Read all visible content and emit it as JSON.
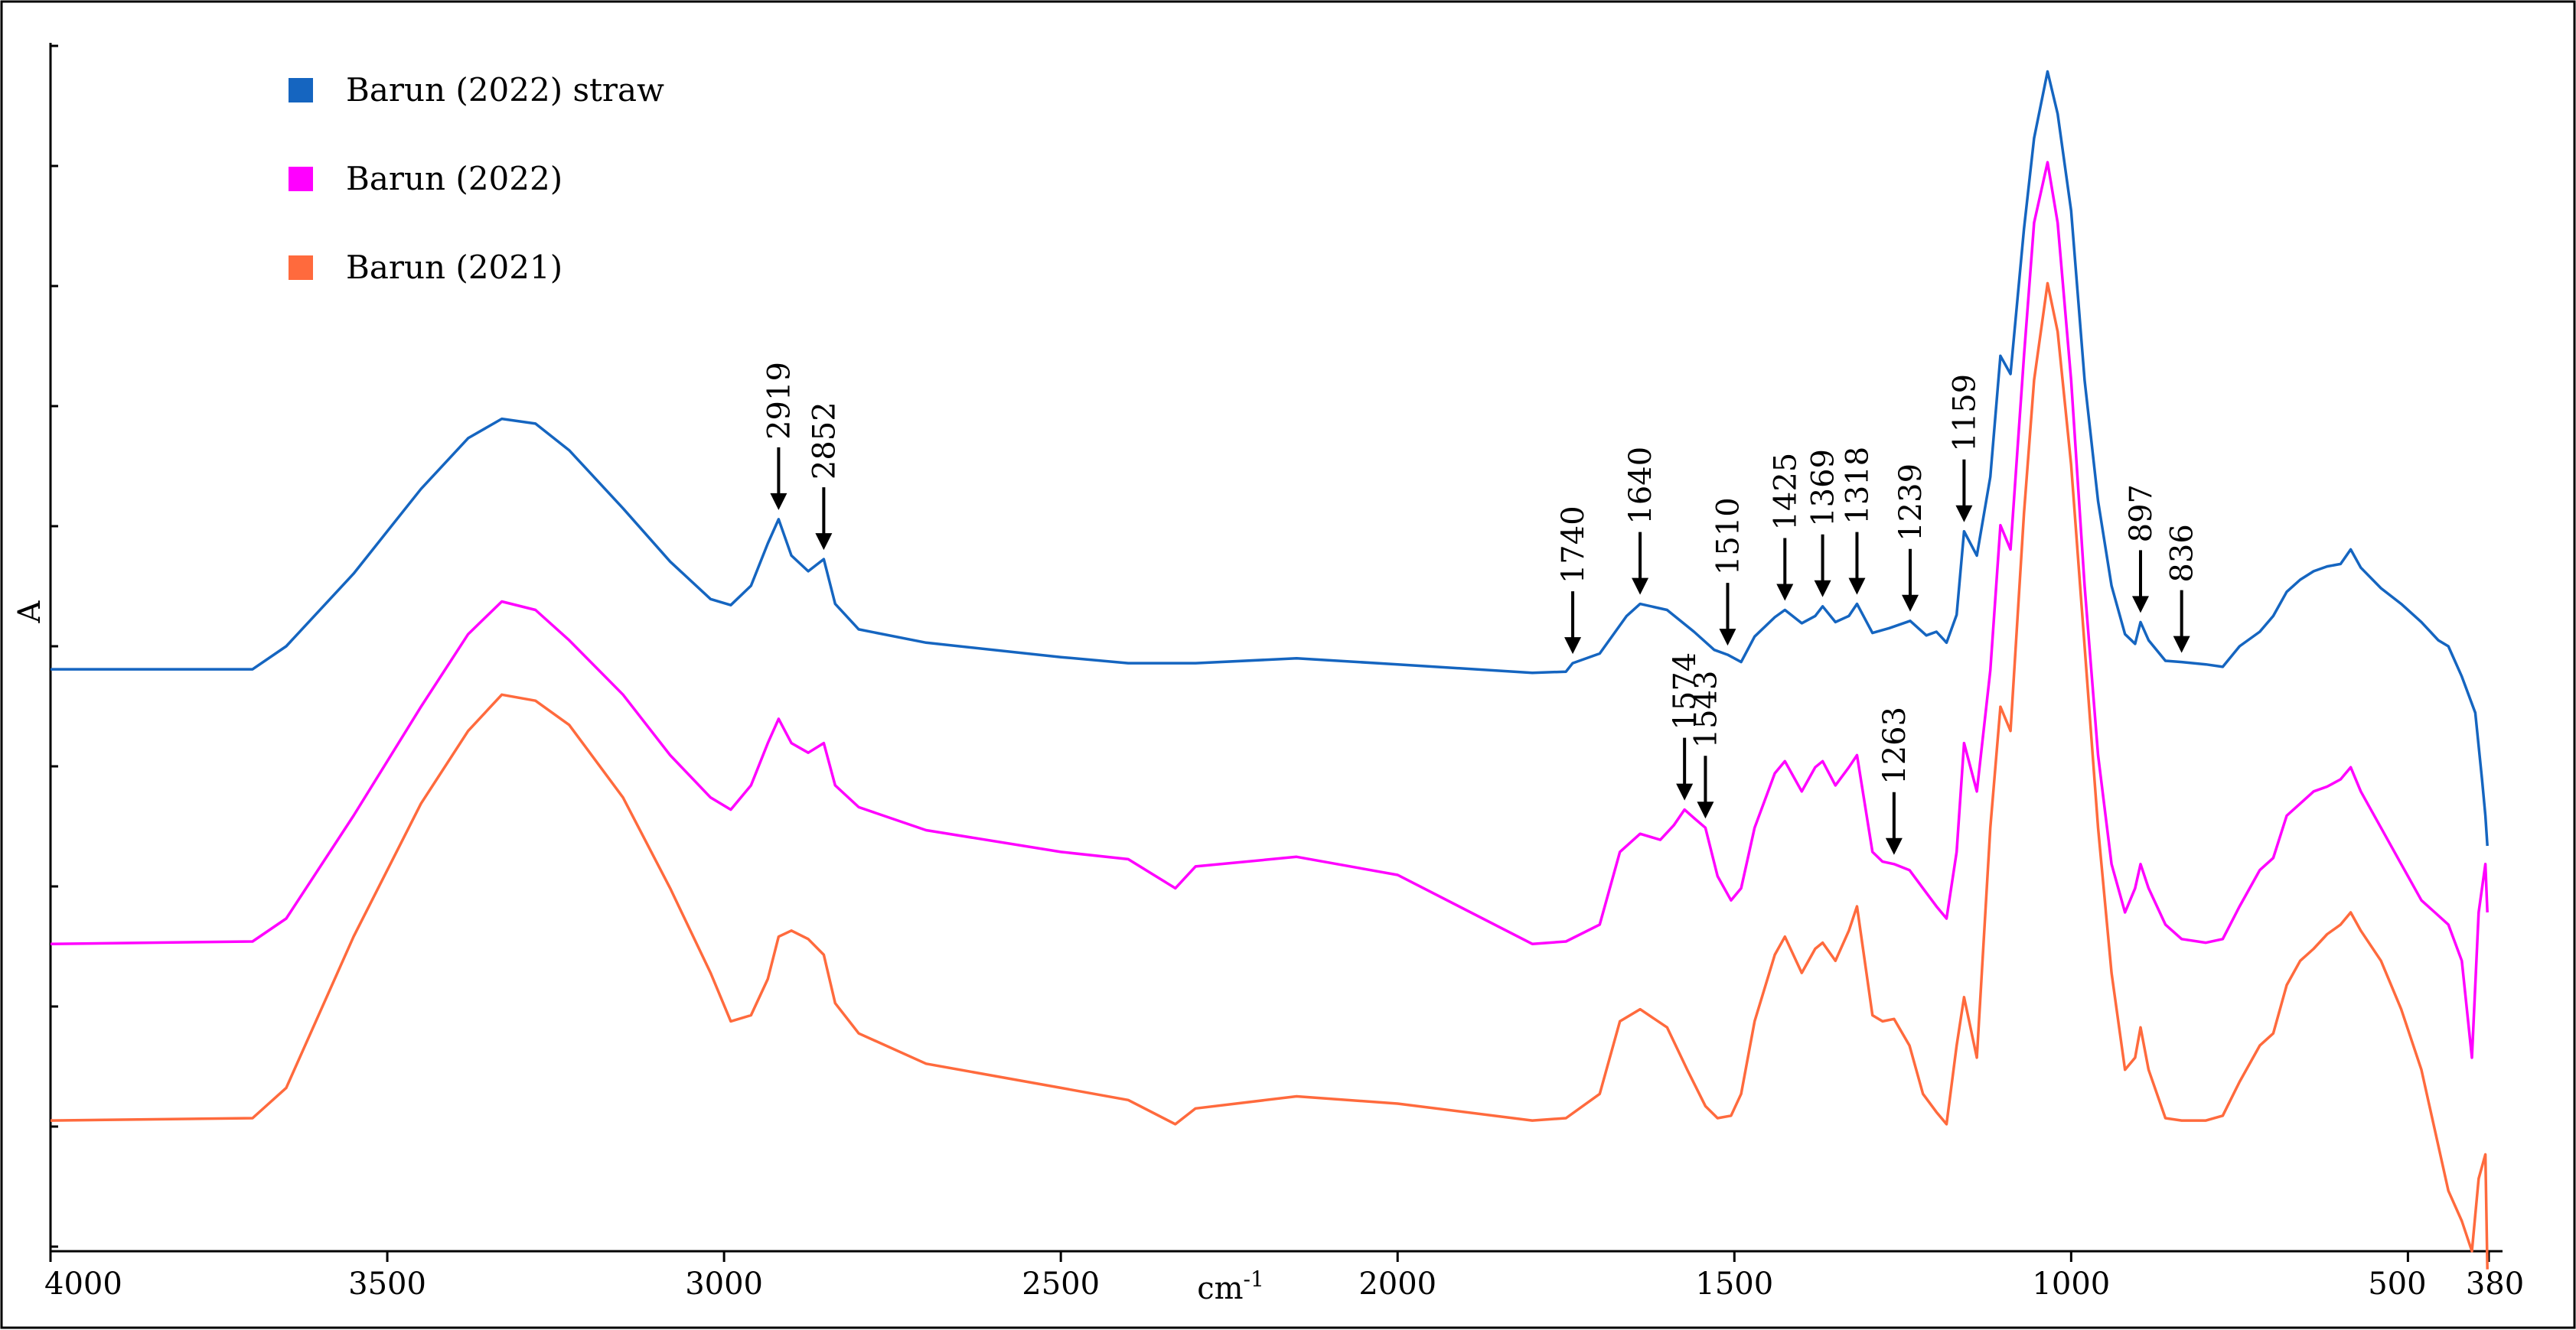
{
  "chart_data": {
    "type": "line",
    "title": "",
    "xlabel": "cm-1",
    "xlabel_text": "cm",
    "xlabel_sup": "-1",
    "ylabel": "A",
    "xlim": [
      4000,
      380
    ],
    "x_reversed": true,
    "ylim": [
      0,
      1
    ],
    "grid": false,
    "legend_position": "top-left",
    "x_ticks": [
      4000,
      3500,
      3000,
      2500,
      2000,
      1500,
      1000,
      500,
      380
    ],
    "x_tick_labels": [
      "4000",
      "3500",
      "3000",
      "2500",
      "2000",
      "1500",
      "1000",
      "500",
      "380"
    ],
    "series": [
      {
        "name": "Barun (2022) straw",
        "color": "#1565C0",
        "points": [
          [
            4000,
            0.481
          ],
          [
            3700,
            0.481
          ],
          [
            3650,
            0.5
          ],
          [
            3550,
            0.56
          ],
          [
            3450,
            0.63
          ],
          [
            3380,
            0.672
          ],
          [
            3330,
            0.688
          ],
          [
            3280,
            0.684
          ],
          [
            3230,
            0.662
          ],
          [
            3150,
            0.614
          ],
          [
            3080,
            0.57
          ],
          [
            3020,
            0.539
          ],
          [
            2990,
            0.534
          ],
          [
            2960,
            0.55
          ],
          [
            2935,
            0.585
          ],
          [
            2919,
            0.605
          ],
          [
            2900,
            0.575
          ],
          [
            2875,
            0.562
          ],
          [
            2852,
            0.572
          ],
          [
            2835,
            0.535
          ],
          [
            2800,
            0.514
          ],
          [
            2700,
            0.503
          ],
          [
            2500,
            0.491
          ],
          [
            2400,
            0.486
          ],
          [
            2300,
            0.486
          ],
          [
            2150,
            0.49
          ],
          [
            2000,
            0.485
          ],
          [
            1800,
            0.478
          ],
          [
            1750,
            0.479
          ],
          [
            1740,
            0.486
          ],
          [
            1700,
            0.494
          ],
          [
            1660,
            0.525
          ],
          [
            1640,
            0.535
          ],
          [
            1600,
            0.53
          ],
          [
            1560,
            0.512
          ],
          [
            1530,
            0.497
          ],
          [
            1510,
            0.493
          ],
          [
            1490,
            0.487
          ],
          [
            1470,
            0.508
          ],
          [
            1440,
            0.524
          ],
          [
            1425,
            0.53
          ],
          [
            1400,
            0.519
          ],
          [
            1380,
            0.525
          ],
          [
            1369,
            0.533
          ],
          [
            1350,
            0.52
          ],
          [
            1330,
            0.525
          ],
          [
            1318,
            0.535
          ],
          [
            1295,
            0.511
          ],
          [
            1270,
            0.515
          ],
          [
            1239,
            0.521
          ],
          [
            1215,
            0.509
          ],
          [
            1200,
            0.512
          ],
          [
            1185,
            0.503
          ],
          [
            1170,
            0.526
          ],
          [
            1159,
            0.595
          ],
          [
            1140,
            0.575
          ],
          [
            1120,
            0.64
          ],
          [
            1105,
            0.74
          ],
          [
            1090,
            0.725
          ],
          [
            1070,
            0.845
          ],
          [
            1055,
            0.92
          ],
          [
            1035,
            0.975
          ],
          [
            1020,
            0.94
          ],
          [
            1000,
            0.86
          ],
          [
            980,
            0.72
          ],
          [
            960,
            0.62
          ],
          [
            940,
            0.55
          ],
          [
            920,
            0.51
          ],
          [
            905,
            0.502
          ],
          [
            897,
            0.52
          ],
          [
            885,
            0.505
          ],
          [
            860,
            0.488
          ],
          [
            836,
            0.487
          ],
          [
            800,
            0.485
          ],
          [
            775,
            0.483
          ],
          [
            750,
            0.5
          ],
          [
            720,
            0.512
          ],
          [
            700,
            0.525
          ],
          [
            680,
            0.545
          ],
          [
            660,
            0.555
          ],
          [
            640,
            0.562
          ],
          [
            620,
            0.566
          ],
          [
            600,
            0.568
          ],
          [
            585,
            0.58
          ],
          [
            570,
            0.565
          ],
          [
            540,
            0.548
          ],
          [
            510,
            0.535
          ],
          [
            480,
            0.52
          ],
          [
            455,
            0.505
          ],
          [
            440,
            0.5
          ],
          [
            420,
            0.475
          ],
          [
            400,
            0.445
          ],
          [
            390,
            0.39
          ],
          [
            385,
            0.36
          ],
          [
            382,
            0.335
          ]
        ]
      },
      {
        "name": "Barun (2022)",
        "color": "#FF00FF",
        "points": [
          [
            4000,
            0.254
          ],
          [
            3700,
            0.256
          ],
          [
            3650,
            0.275
          ],
          [
            3550,
            0.36
          ],
          [
            3450,
            0.45
          ],
          [
            3380,
            0.51
          ],
          [
            3330,
            0.537
          ],
          [
            3280,
            0.53
          ],
          [
            3230,
            0.505
          ],
          [
            3150,
            0.46
          ],
          [
            3080,
            0.41
          ],
          [
            3020,
            0.375
          ],
          [
            2990,
            0.365
          ],
          [
            2960,
            0.385
          ],
          [
            2935,
            0.42
          ],
          [
            2919,
            0.44
          ],
          [
            2900,
            0.42
          ],
          [
            2875,
            0.412
          ],
          [
            2852,
            0.42
          ],
          [
            2835,
            0.385
          ],
          [
            2800,
            0.367
          ],
          [
            2700,
            0.348
          ],
          [
            2500,
            0.33
          ],
          [
            2400,
            0.324
          ],
          [
            2330,
            0.3
          ],
          [
            2300,
            0.318
          ],
          [
            2150,
            0.326
          ],
          [
            2000,
            0.311
          ],
          [
            1800,
            0.254
          ],
          [
            1750,
            0.256
          ],
          [
            1700,
            0.27
          ],
          [
            1670,
            0.33
          ],
          [
            1640,
            0.345
          ],
          [
            1610,
            0.34
          ],
          [
            1590,
            0.352
          ],
          [
            1574,
            0.365
          ],
          [
            1560,
            0.358
          ],
          [
            1543,
            0.35
          ],
          [
            1525,
            0.31
          ],
          [
            1505,
            0.29
          ],
          [
            1490,
            0.3
          ],
          [
            1470,
            0.35
          ],
          [
            1440,
            0.395
          ],
          [
            1425,
            0.405
          ],
          [
            1400,
            0.38
          ],
          [
            1380,
            0.4
          ],
          [
            1369,
            0.405
          ],
          [
            1350,
            0.385
          ],
          [
            1330,
            0.4
          ],
          [
            1318,
            0.41
          ],
          [
            1295,
            0.33
          ],
          [
            1280,
            0.322
          ],
          [
            1263,
            0.32
          ],
          [
            1240,
            0.315
          ],
          [
            1220,
            0.3
          ],
          [
            1200,
            0.285
          ],
          [
            1185,
            0.275
          ],
          [
            1170,
            0.33
          ],
          [
            1159,
            0.42
          ],
          [
            1140,
            0.38
          ],
          [
            1120,
            0.48
          ],
          [
            1105,
            0.6
          ],
          [
            1090,
            0.58
          ],
          [
            1070,
            0.74
          ],
          [
            1055,
            0.85
          ],
          [
            1035,
            0.9
          ],
          [
            1020,
            0.85
          ],
          [
            1000,
            0.72
          ],
          [
            980,
            0.55
          ],
          [
            960,
            0.41
          ],
          [
            940,
            0.32
          ],
          [
            920,
            0.28
          ],
          [
            905,
            0.3
          ],
          [
            897,
            0.32
          ],
          [
            885,
            0.3
          ],
          [
            860,
            0.27
          ],
          [
            836,
            0.258
          ],
          [
            800,
            0.255
          ],
          [
            775,
            0.258
          ],
          [
            750,
            0.285
          ],
          [
            720,
            0.315
          ],
          [
            700,
            0.325
          ],
          [
            680,
            0.36
          ],
          [
            660,
            0.37
          ],
          [
            640,
            0.38
          ],
          [
            620,
            0.384
          ],
          [
            600,
            0.39
          ],
          [
            585,
            0.4
          ],
          [
            570,
            0.38
          ],
          [
            540,
            0.35
          ],
          [
            510,
            0.32
          ],
          [
            480,
            0.29
          ],
          [
            460,
            0.28
          ],
          [
            440,
            0.27
          ],
          [
            420,
            0.24
          ],
          [
            405,
            0.16
          ],
          [
            395,
            0.28
          ],
          [
            385,
            0.32
          ],
          [
            382,
            0.28
          ]
        ]
      },
      {
        "name": "Barun (2021)",
        "color": "#FF6A3D",
        "points": [
          [
            4000,
            0.108
          ],
          [
            3700,
            0.11
          ],
          [
            3650,
            0.135
          ],
          [
            3550,
            0.26
          ],
          [
            3450,
            0.37
          ],
          [
            3380,
            0.43
          ],
          [
            3330,
            0.46
          ],
          [
            3280,
            0.455
          ],
          [
            3230,
            0.435
          ],
          [
            3150,
            0.375
          ],
          [
            3080,
            0.3
          ],
          [
            3020,
            0.23
          ],
          [
            2990,
            0.19
          ],
          [
            2960,
            0.195
          ],
          [
            2935,
            0.225
          ],
          [
            2919,
            0.26
          ],
          [
            2900,
            0.265
          ],
          [
            2875,
            0.258
          ],
          [
            2852,
            0.245
          ],
          [
            2835,
            0.205
          ],
          [
            2800,
            0.18
          ],
          [
            2700,
            0.155
          ],
          [
            2500,
            0.135
          ],
          [
            2400,
            0.125
          ],
          [
            2330,
            0.105
          ],
          [
            2300,
            0.118
          ],
          [
            2150,
            0.128
          ],
          [
            2000,
            0.122
          ],
          [
            1800,
            0.108
          ],
          [
            1750,
            0.11
          ],
          [
            1700,
            0.13
          ],
          [
            1670,
            0.19
          ],
          [
            1640,
            0.2
          ],
          [
            1600,
            0.185
          ],
          [
            1570,
            0.15
          ],
          [
            1543,
            0.12
          ],
          [
            1525,
            0.11
          ],
          [
            1505,
            0.112
          ],
          [
            1490,
            0.13
          ],
          [
            1470,
            0.19
          ],
          [
            1440,
            0.245
          ],
          [
            1425,
            0.26
          ],
          [
            1400,
            0.23
          ],
          [
            1380,
            0.25
          ],
          [
            1369,
            0.255
          ],
          [
            1350,
            0.24
          ],
          [
            1330,
            0.265
          ],
          [
            1318,
            0.285
          ],
          [
            1295,
            0.195
          ],
          [
            1280,
            0.19
          ],
          [
            1263,
            0.192
          ],
          [
            1240,
            0.17
          ],
          [
            1220,
            0.13
          ],
          [
            1200,
            0.115
          ],
          [
            1185,
            0.105
          ],
          [
            1170,
            0.17
          ],
          [
            1159,
            0.21
          ],
          [
            1140,
            0.16
          ],
          [
            1120,
            0.35
          ],
          [
            1105,
            0.45
          ],
          [
            1090,
            0.43
          ],
          [
            1070,
            0.61
          ],
          [
            1055,
            0.72
          ],
          [
            1035,
            0.8
          ],
          [
            1020,
            0.76
          ],
          [
            1000,
            0.65
          ],
          [
            980,
            0.5
          ],
          [
            960,
            0.35
          ],
          [
            940,
            0.23
          ],
          [
            920,
            0.15
          ],
          [
            905,
            0.16
          ],
          [
            897,
            0.185
          ],
          [
            885,
            0.15
          ],
          [
            860,
            0.11
          ],
          [
            836,
            0.108
          ],
          [
            800,
            0.108
          ],
          [
            775,
            0.112
          ],
          [
            750,
            0.14
          ],
          [
            720,
            0.17
          ],
          [
            700,
            0.18
          ],
          [
            680,
            0.22
          ],
          [
            660,
            0.24
          ],
          [
            640,
            0.25
          ],
          [
            620,
            0.262
          ],
          [
            600,
            0.27
          ],
          [
            585,
            0.28
          ],
          [
            570,
            0.265
          ],
          [
            540,
            0.24
          ],
          [
            510,
            0.2
          ],
          [
            480,
            0.15
          ],
          [
            460,
            0.1
          ],
          [
            440,
            0.05
          ],
          [
            420,
            0.025
          ],
          [
            405,
            0.0
          ],
          [
            395,
            0.06
          ],
          [
            385,
            0.08
          ],
          [
            382,
            -0.015
          ]
        ]
      }
    ],
    "annotations": [
      {
        "label": "2919",
        "x": 2919,
        "series": 0
      },
      {
        "label": "2852",
        "x": 2852,
        "series": 0
      },
      {
        "label": "1740",
        "x": 1740,
        "series": 0
      },
      {
        "label": "1640",
        "x": 1640,
        "series": 0
      },
      {
        "label": "1510",
        "x": 1510,
        "series": 0
      },
      {
        "label": "1425",
        "x": 1425,
        "series": 0
      },
      {
        "label": "1369",
        "x": 1369,
        "series": 0
      },
      {
        "label": "1318",
        "x": 1318,
        "series": 0
      },
      {
        "label": "1239",
        "x": 1239,
        "series": 0
      },
      {
        "label": "1159",
        "x": 1159,
        "series": 0
      },
      {
        "label": "897",
        "x": 897,
        "series": 0
      },
      {
        "label": "836",
        "x": 836,
        "series": 0
      },
      {
        "label": "1574",
        "x": 1574,
        "series": 1
      },
      {
        "label": "1543",
        "x": 1543,
        "series": 1
      },
      {
        "label": "1263",
        "x": 1263,
        "series": 1
      }
    ]
  }
}
